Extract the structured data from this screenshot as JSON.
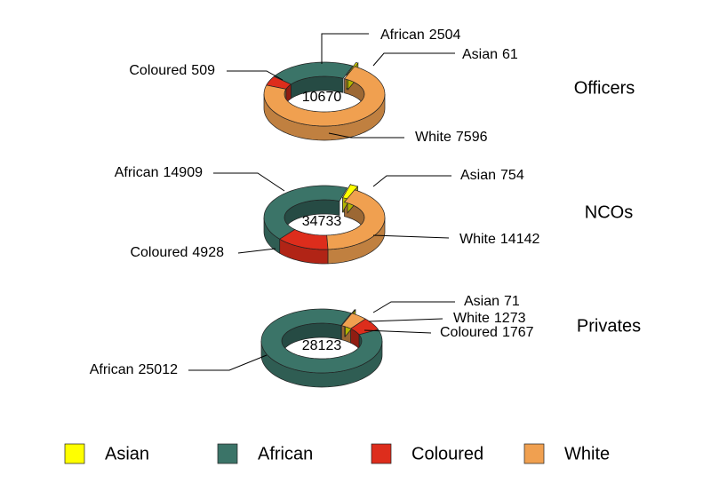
{
  "chart_data": [
    {
      "type": "donut",
      "title": "Officers",
      "total": 10670,
      "categories": [
        "Asian",
        "African",
        "Coloured",
        "White"
      ],
      "values": [
        61,
        2504,
        509,
        7596
      ],
      "colors": [
        "#ffff00",
        "#3b7468",
        "#dd2d1c",
        "#f0a050"
      ]
    },
    {
      "type": "donut",
      "title": "NCOs",
      "total": 34733,
      "categories": [
        "Asian",
        "African",
        "Coloured",
        "White"
      ],
      "values": [
        754,
        14909,
        4928,
        14142
      ],
      "colors": [
        "#ffff00",
        "#3b7468",
        "#dd2d1c",
        "#f0a050"
      ]
    },
    {
      "type": "donut",
      "title": "Privates",
      "total": 28123,
      "categories": [
        "Asian",
        "African",
        "Coloured",
        "White"
      ],
      "values": [
        71,
        25012,
        1767,
        1273
      ],
      "colors": [
        "#ffff00",
        "#3b7468",
        "#dd2d1c",
        "#f0a050"
      ]
    }
  ]
}
